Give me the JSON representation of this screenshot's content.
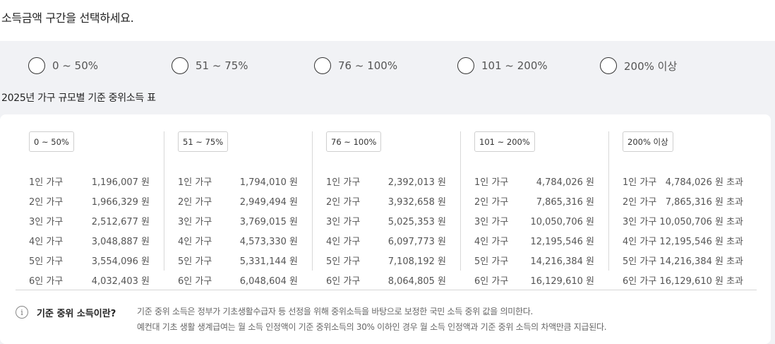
{
  "prompt": "소득금액 구간을 선택하세요.",
  "options": [
    {
      "label": "0 ~ 50%"
    },
    {
      "label": "51 ~ 75%"
    },
    {
      "label": "76 ~ 100%"
    },
    {
      "label": "101 ~ 200%"
    },
    {
      "label": "200% 이상"
    }
  ],
  "table_title": "2025년 가구 규모별 기준 중위소득 표",
  "columns": [
    {
      "header": "0 ~ 50%",
      "rows": [
        {
          "household": "1인 가구",
          "amount": "1,196,007 원"
        },
        {
          "household": "2인 가구",
          "amount": "1,966,329 원"
        },
        {
          "household": "3인 가구",
          "amount": "2,512,677 원"
        },
        {
          "household": "4인 가구",
          "amount": "3,048,887 원"
        },
        {
          "household": "5인 가구",
          "amount": "3,554,096 원"
        },
        {
          "household": "6인 가구",
          "amount": "4,032,403 원"
        }
      ]
    },
    {
      "header": "51 ~ 75%",
      "rows": [
        {
          "household": "1인 가구",
          "amount": "1,794,010 원"
        },
        {
          "household": "2인 가구",
          "amount": "2,949,494 원"
        },
        {
          "household": "3인 가구",
          "amount": "3,769,015 원"
        },
        {
          "household": "4인 가구",
          "amount": "4,573,330 원"
        },
        {
          "household": "5인 가구",
          "amount": "5,331,144 원"
        },
        {
          "household": "6인 가구",
          "amount": "6,048,604 원"
        }
      ]
    },
    {
      "header": "76 ~ 100%",
      "rows": [
        {
          "household": "1인 가구",
          "amount": "2,392,013 원"
        },
        {
          "household": "2인 가구",
          "amount": "3,932,658 원"
        },
        {
          "household": "3인 가구",
          "amount": "5,025,353 원"
        },
        {
          "household": "4인 가구",
          "amount": "6,097,773 원"
        },
        {
          "household": "5인 가구",
          "amount": "7,108,192 원"
        },
        {
          "household": "6인 가구",
          "amount": "8,064,805 원"
        }
      ]
    },
    {
      "header": "101 ~ 200%",
      "rows": [
        {
          "household": "1인 가구",
          "amount": "4,784,026 원"
        },
        {
          "household": "2인 가구",
          "amount": "7,865,316 원"
        },
        {
          "household": "3인 가구",
          "amount": "10,050,706 원"
        },
        {
          "household": "4인 가구",
          "amount": "12,195,546 원"
        },
        {
          "household": "5인 가구",
          "amount": "14,216,384 원"
        },
        {
          "household": "6인 가구",
          "amount": "16,129,610 원"
        }
      ]
    },
    {
      "header": "200% 이상",
      "rows": [
        {
          "household": "1인 가구",
          "amount": "4,784,026 원 초과"
        },
        {
          "household": "2인 가구",
          "amount": "7,865,316 원 초과"
        },
        {
          "household": "3인 가구",
          "amount": "10,050,706 원 초과"
        },
        {
          "household": "4인 가구",
          "amount": "12,195,546 원 초과"
        },
        {
          "household": "5인 가구",
          "amount": "14,216,384 원 초과"
        },
        {
          "household": "6인 가구",
          "amount": "16,129,610 원 초과"
        }
      ]
    }
  ],
  "info": {
    "icon": "info-icon",
    "icon_glyph": "i",
    "title": "기준 중위 소득이란?",
    "lines": [
      "기준 중위 소득은 정부가 기초생활수급자 등 선정을 위해 중위소득을 바탕으로 보정한 국민 소득 중위 값을 의미한다.",
      "예컨대 기초 생활 생계급여는 월 소득 인정액이 기준 중위소득의 30% 이하인 경우 월 소득 인정액과 기준 중위 소득의 차액만큼 지급된다."
    ]
  }
}
